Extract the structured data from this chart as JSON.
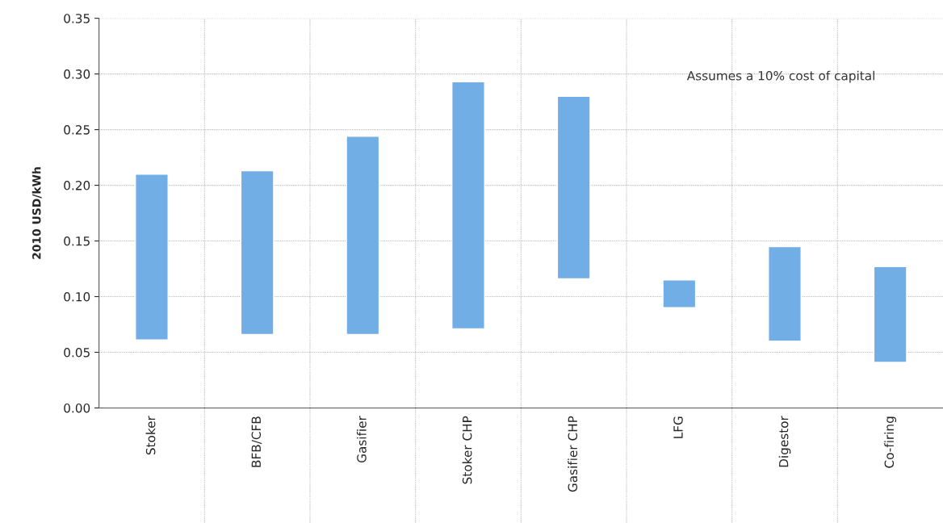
{
  "chart_data": {
    "type": "bar",
    "ylabel": "2010 USD/kWh",
    "categories": [
      "Stoker",
      "BFB/CFB",
      "Gasifier",
      "Stoker CHP",
      "Gasifier CHP",
      "LFG",
      "Digestor",
      "Co-firing"
    ],
    "base": [
      0.061,
      0.066,
      0.066,
      0.071,
      0.116,
      0.09,
      0.06,
      0.041
    ],
    "values": [
      0.149,
      0.147,
      0.178,
      0.222,
      0.164,
      0.025,
      0.085,
      0.086
    ],
    "color": "#72aee6",
    "ylim": [
      0,
      0.35
    ],
    "yticks": [
      {
        "value": 0,
        "label": "0.00"
      },
      {
        "value": 0.05,
        "label": "0.05"
      },
      {
        "value": 0.1,
        "label": "0.10"
      },
      {
        "value": 0.15,
        "label": "0.15"
      },
      {
        "value": 0.2,
        "label": "0.20"
      },
      {
        "value": 0.25,
        "label": "0.25"
      },
      {
        "value": 0.3,
        "label": "0.30"
      },
      {
        "value": 0.35,
        "label": "0.35"
      }
    ],
    "grid": true,
    "annotations": [
      "Assumes a 10% cost of capital"
    ]
  }
}
